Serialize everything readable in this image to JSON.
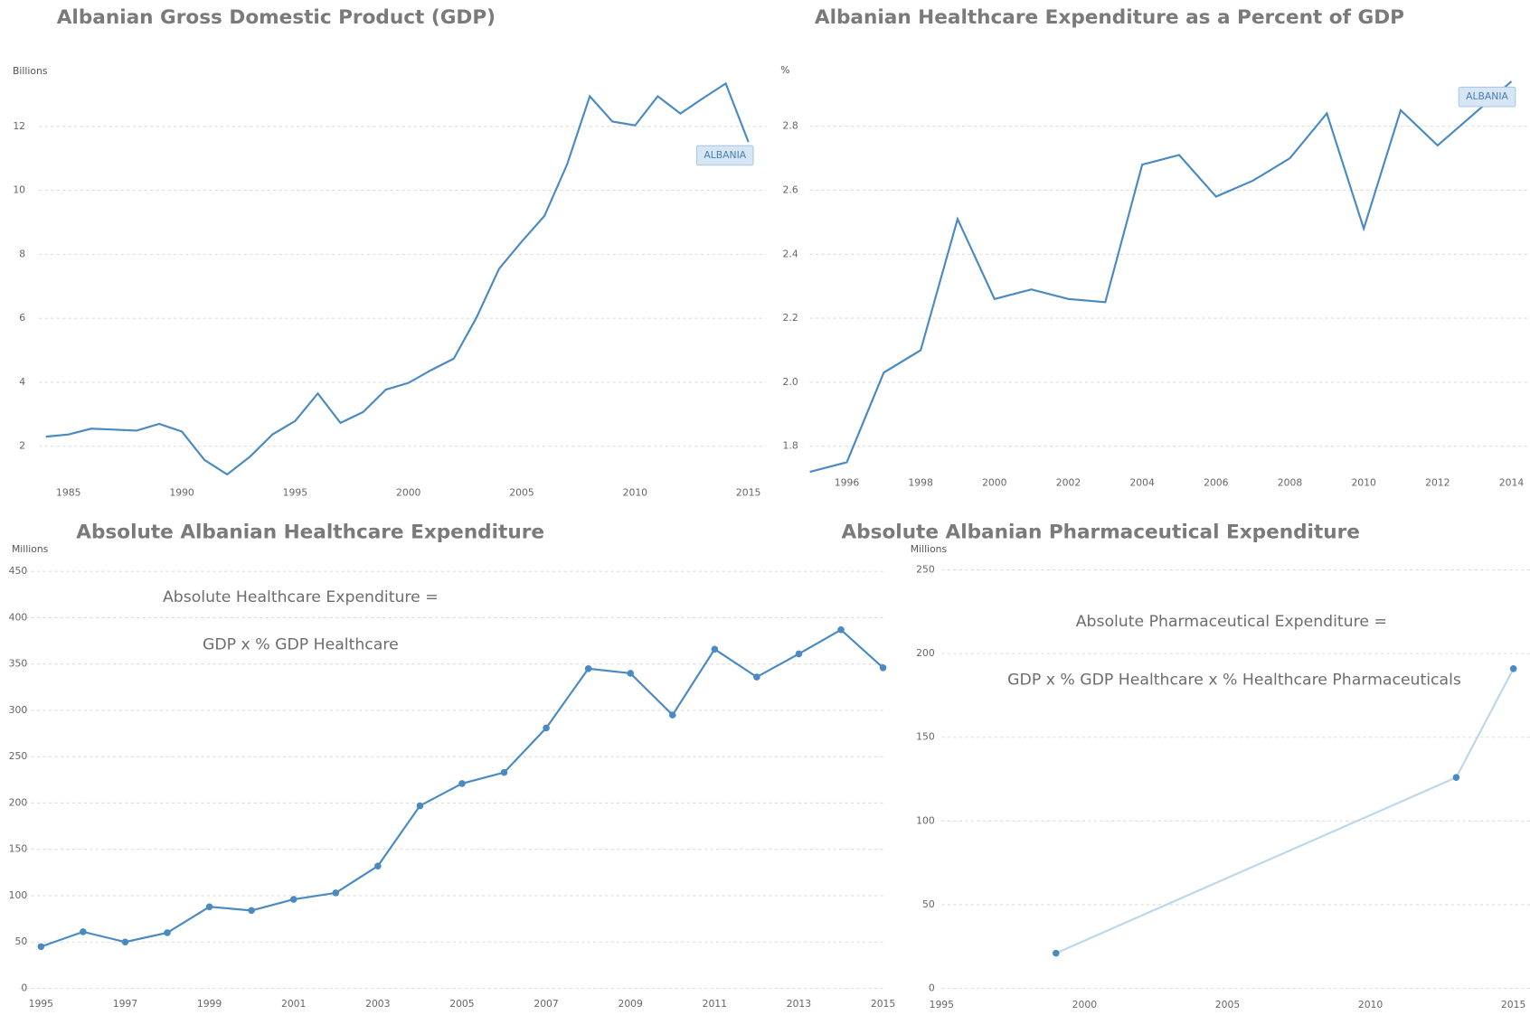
{
  "chart_data": [
    {
      "type": "line",
      "title": "Albanian Gross Domestic Product (GDP)",
      "y_unit": "Billions",
      "x": [
        1984,
        1985,
        1986,
        1987,
        1988,
        1989,
        1990,
        1991,
        1992,
        1993,
        1994,
        1995,
        1996,
        1997,
        1998,
        1999,
        2000,
        2001,
        2002,
        2003,
        2004,
        2005,
        2006,
        2007,
        2008,
        2009,
        2010,
        2011,
        2012,
        2013,
        2014,
        2015
      ],
      "series": [
        {
          "name": "ALBANIA",
          "color": "#4a8ac2",
          "values": [
            2.3,
            2.37,
            2.55,
            2.52,
            2.49,
            2.7,
            2.46,
            1.57,
            1.12,
            1.67,
            2.37,
            2.79,
            3.65,
            2.73,
            3.07,
            3.77,
            3.98,
            4.38,
            4.74,
            6.02,
            7.55,
            8.4,
            9.2,
            10.81,
            12.94,
            12.15,
            12.03,
            12.94,
            12.4,
            12.88,
            13.34,
            11.51
          ]
        }
      ],
      "xlim": [
        1984,
        2015
      ],
      "xticks": [
        1985,
        1990,
        1995,
        2000,
        2005,
        2010,
        2015
      ],
      "ylim": [
        1,
        13.5
      ],
      "yticks": [
        2,
        4,
        6,
        8,
        10,
        12
      ],
      "grid": true,
      "markers": false
    },
    {
      "type": "line",
      "title": "Albanian Healthcare Expenditure as a Percent of GDP",
      "y_unit": "%",
      "x": [
        1995,
        1996,
        1997,
        1998,
        1999,
        2000,
        2001,
        2002,
        2003,
        2004,
        2005,
        2006,
        2007,
        2008,
        2009,
        2010,
        2011,
        2012,
        2013,
        2014
      ],
      "series": [
        {
          "name": "ALBANIA",
          "color": "#4a8ac2",
          "values": [
            1.72,
            1.75,
            2.03,
            2.1,
            2.51,
            2.26,
            2.29,
            2.26,
            2.25,
            2.68,
            2.71,
            2.58,
            2.63,
            2.7,
            2.84,
            2.48,
            2.85,
            2.74,
            2.84,
            2.94
          ]
        }
      ],
      "xlim": [
        1995,
        2014
      ],
      "xticks": [
        1996,
        1998,
        2000,
        2002,
        2004,
        2006,
        2008,
        2010,
        2012,
        2014
      ],
      "ylim": [
        1.7,
        2.98
      ],
      "yticks": [
        1.8,
        {
          "value": 2,
          "label": "2.0"
        },
        2.2,
        2.4,
        2.6,
        2.8
      ],
      "grid": true,
      "markers": false
    },
    {
      "type": "line",
      "title": "Absolute Albanian Healthcare Expenditure",
      "y_unit": "Millions",
      "annotations": [
        "Absolute Healthcare Expenditure =",
        "GDP x % GDP Healthcare"
      ],
      "x": [
        1995,
        1996,
        1997,
        1998,
        1999,
        2000,
        2001,
        2002,
        2003,
        2004,
        2005,
        2006,
        2007,
        2008,
        2009,
        2010,
        2011,
        2012,
        2013,
        2014,
        2015
      ],
      "series": [
        {
          "color": "#4a8ac2",
          "marker_color": "#4a8ac2",
          "values": [
            45,
            61,
            50,
            60,
            88,
            84,
            96,
            103,
            132,
            197,
            221,
            233,
            281,
            345,
            340,
            295,
            366,
            336,
            361,
            387,
            346
          ]
        }
      ],
      "xlim": [
        1995,
        2015
      ],
      "xticks": [
        1995,
        1997,
        1999,
        2001,
        2003,
        2005,
        2007,
        2009,
        2011,
        2013,
        2015
      ],
      "ylim": [
        0,
        460
      ],
      "yticks": [
        0,
        50,
        100,
        150,
        200,
        250,
        300,
        350,
        400,
        450
      ],
      "grid": true,
      "markers": true
    },
    {
      "type": "line",
      "title": "Absolute Albanian Pharmaceutical Expenditure",
      "y_unit": "Millions",
      "annotations": [
        "Absolute Pharmaceutical Expenditure =",
        "GDP x % GDP Healthcare x % Healthcare Pharmaceuticals"
      ],
      "x": [
        1999,
        2013,
        2015
      ],
      "series": [
        {
          "color": "#bcd7ec",
          "marker_color": "#4a8ac2",
          "values": [
            21,
            126,
            191
          ]
        }
      ],
      "xlim": [
        1995,
        2015
      ],
      "xticks": [
        1995,
        2000,
        2005,
        2010,
        2015
      ],
      "ylim": [
        0,
        250
      ],
      "yticks": [
        0,
        50,
        100,
        150,
        200,
        250
      ],
      "grid": true,
      "markers": true
    }
  ]
}
